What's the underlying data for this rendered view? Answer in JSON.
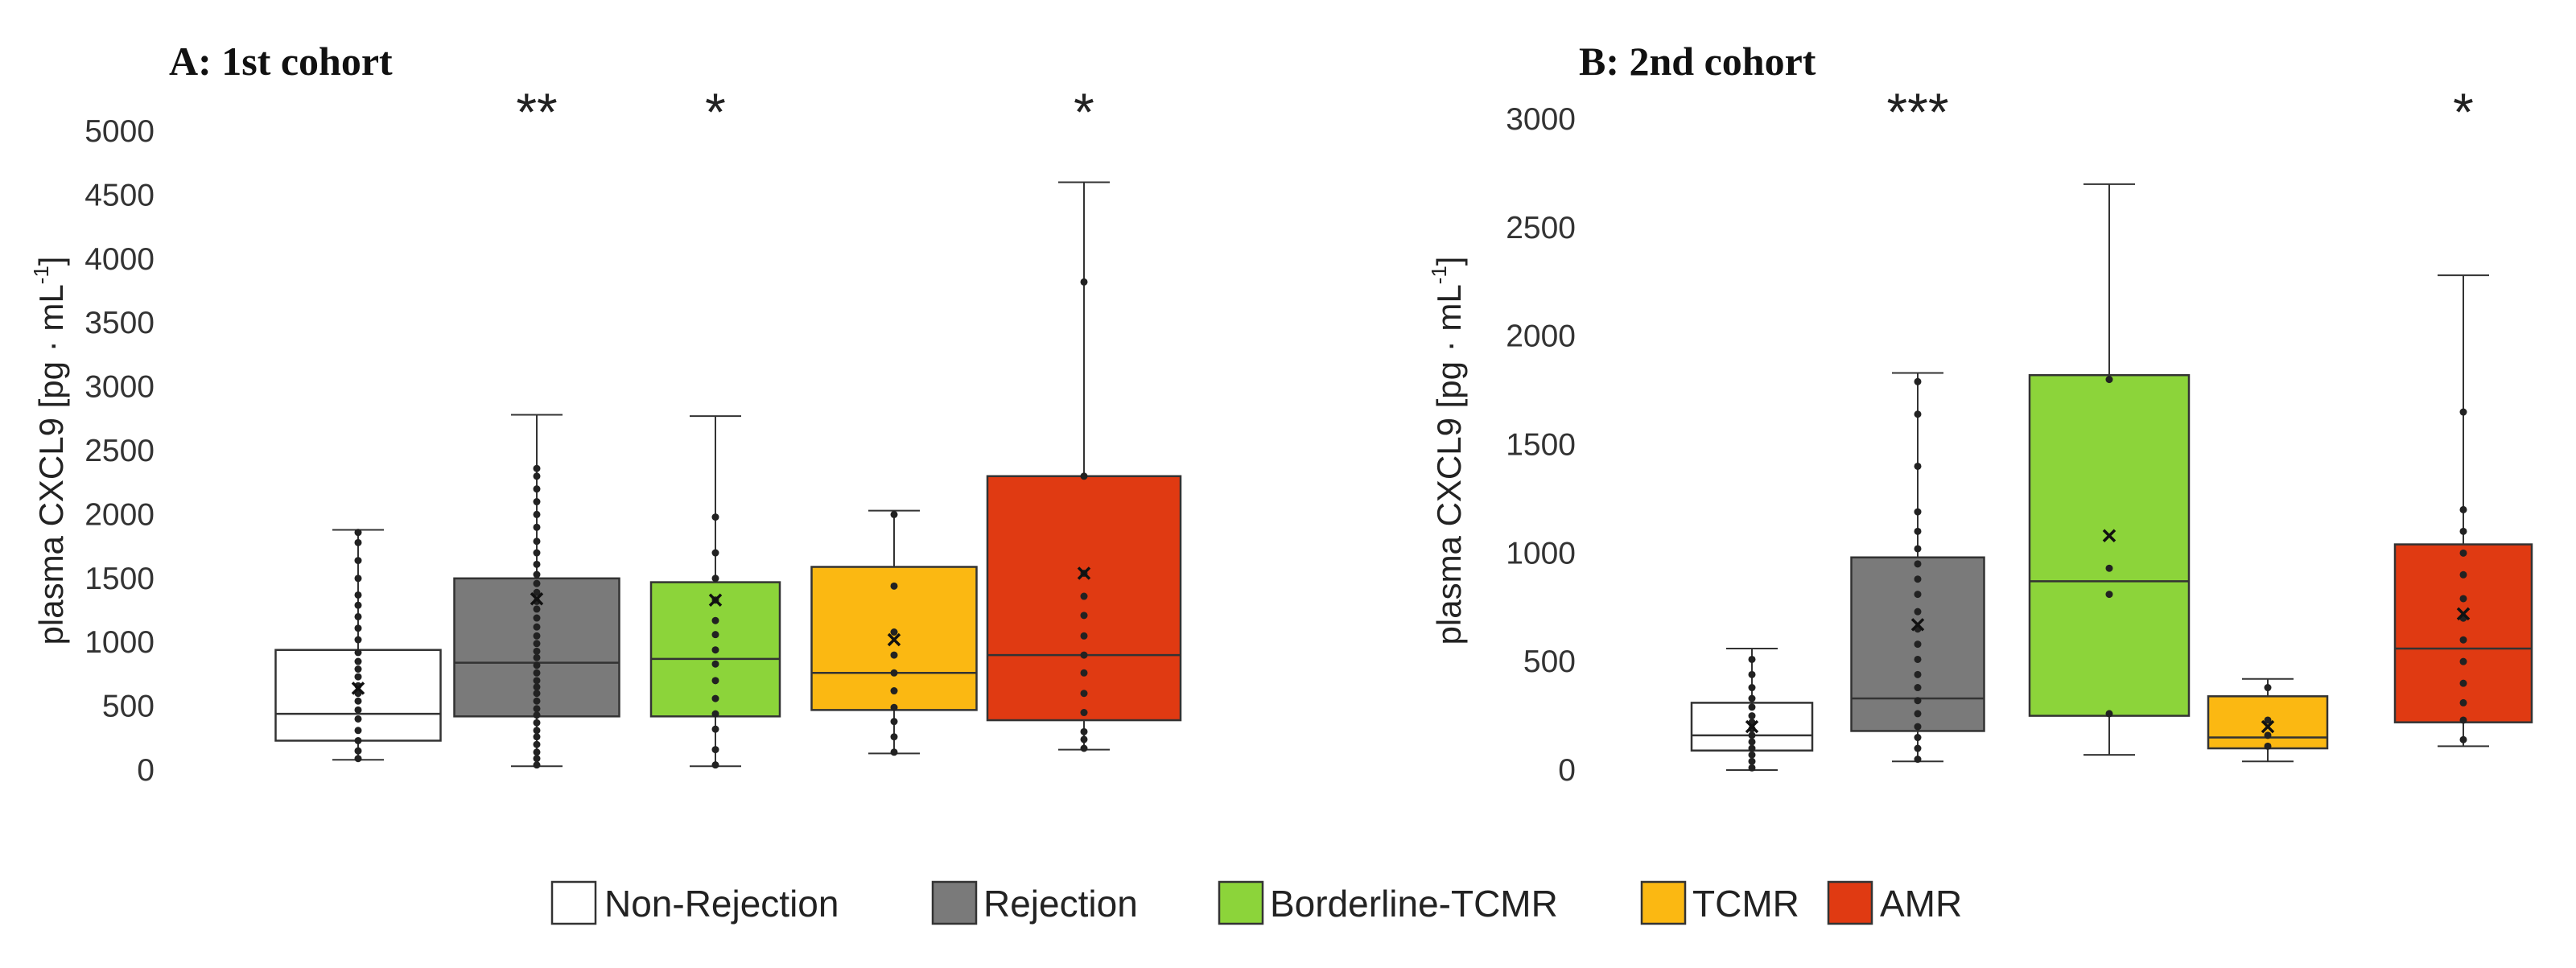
{
  "legend": {
    "items": [
      {
        "label": "Non-Rejection",
        "color": "#ffffff"
      },
      {
        "label": "Rejection",
        "color": "#7a7a7a"
      },
      {
        "label": "Borderline-TCMR",
        "color": "#8cd43a"
      },
      {
        "label": "TCMR",
        "color": "#fbb812"
      },
      {
        "label": "AMR",
        "color": "#e03a12"
      }
    ]
  },
  "chart_data": [
    {
      "type": "box",
      "title": "A: 1st cohort",
      "ylabel": "plasma CXCL9 [pg · mL",
      "ylabel_sup": "-1",
      "ylabel_close": "]",
      "ylim": [
        0,
        5000
      ],
      "yticks": [
        "0",
        "500",
        "1000",
        "1500",
        "2000",
        "2500",
        "3000",
        "3500",
        "4000",
        "4500",
        "5000"
      ],
      "categories": [
        "Non-Rejection",
        "Rejection",
        "Borderline-TCMR",
        "TCMR",
        "AMR"
      ],
      "significance": [
        "",
        "**",
        "*",
        "",
        "*"
      ],
      "boxes": [
        {
          "min": 80,
          "q1": 230,
          "median": 440,
          "q3": 940,
          "max": 1880,
          "mean": 640,
          "points": [
            90,
            150,
            230,
            310,
            400,
            470,
            540,
            600,
            660,
            730,
            790,
            850,
            920,
            1020,
            1110,
            1200,
            1290,
            1370,
            1500,
            1640,
            1780,
            1860
          ]
        },
        {
          "min": 30,
          "q1": 420,
          "median": 840,
          "q3": 1500,
          "max": 2780,
          "mean": 1340,
          "points": [
            40,
            90,
            140,
            200,
            260,
            310,
            370,
            430,
            480,
            540,
            600,
            650,
            700,
            760,
            820,
            880,
            930,
            990,
            1050,
            1120,
            1190,
            1260,
            1320,
            1390,
            1460,
            1530,
            1610,
            1700,
            1790,
            1900,
            2000,
            2100,
            2200,
            2300,
            2360
          ]
        },
        {
          "min": 30,
          "q1": 420,
          "median": 870,
          "q3": 1470,
          "max": 2770,
          "mean": 1330,
          "points": [
            40,
            160,
            320,
            440,
            560,
            700,
            830,
            940,
            1060,
            1170,
            1330,
            1500,
            1700,
            1980
          ]
        },
        {
          "min": 130,
          "q1": 470,
          "median": 760,
          "q3": 1590,
          "max": 2030,
          "mean": 1020,
          "points": [
            140,
            260,
            380,
            490,
            620,
            760,
            900,
            1080,
            1440,
            2000
          ]
        },
        {
          "min": 160,
          "q1": 390,
          "median": 900,
          "q3": 2300,
          "max": 4600,
          "mean": 1540,
          "points": [
            170,
            240,
            300,
            450,
            600,
            760,
            900,
            1050,
            1210,
            1360,
            1540,
            2300,
            3820
          ]
        }
      ]
    },
    {
      "type": "box",
      "title": "B: 2nd cohort",
      "ylabel": "plasma CXCL9 [pg · mL",
      "ylabel_sup": "-1",
      "ylabel_close": "]",
      "ylim": [
        0,
        3000
      ],
      "yticks": [
        "0",
        "500",
        "1000",
        "1500",
        "2000",
        "2500",
        "3000"
      ],
      "categories": [
        "Non-Rejection",
        "Rejection",
        "Borderline-TCMR",
        "TCMR",
        "AMR"
      ],
      "significance": [
        "",
        "***",
        "",
        "",
        "*"
      ],
      "boxes": [
        {
          "min": 0,
          "q1": 90,
          "median": 160,
          "q3": 310,
          "max": 560,
          "mean": 200,
          "points": [
            10,
            40,
            70,
            100,
            130,
            160,
            190,
            220,
            250,
            290,
            330,
            380,
            440,
            510
          ]
        },
        {
          "min": 40,
          "q1": 180,
          "median": 330,
          "q3": 980,
          "max": 1830,
          "mean": 670,
          "points": [
            50,
            100,
            150,
            200,
            260,
            320,
            380,
            440,
            510,
            580,
            650,
            730,
            810,
            880,
            950,
            1020,
            1100,
            1190,
            1400,
            1640,
            1790
          ]
        },
        {
          "min": 70,
          "q1": 250,
          "median": 870,
          "q3": 1820,
          "max": 2700,
          "mean": 1080,
          "points": [
            260,
            810,
            930,
            1800
          ]
        },
        {
          "min": 40,
          "q1": 100,
          "median": 150,
          "q3": 340,
          "max": 420,
          "mean": 200,
          "points": [
            110,
            160,
            230,
            380
          ]
        },
        {
          "min": 110,
          "q1": 220,
          "median": 560,
          "q3": 1040,
          "max": 2280,
          "mean": 720,
          "points": [
            140,
            230,
            310,
            400,
            500,
            600,
            700,
            790,
            900,
            1000,
            1100,
            1200,
            1650
          ]
        }
      ]
    }
  ]
}
